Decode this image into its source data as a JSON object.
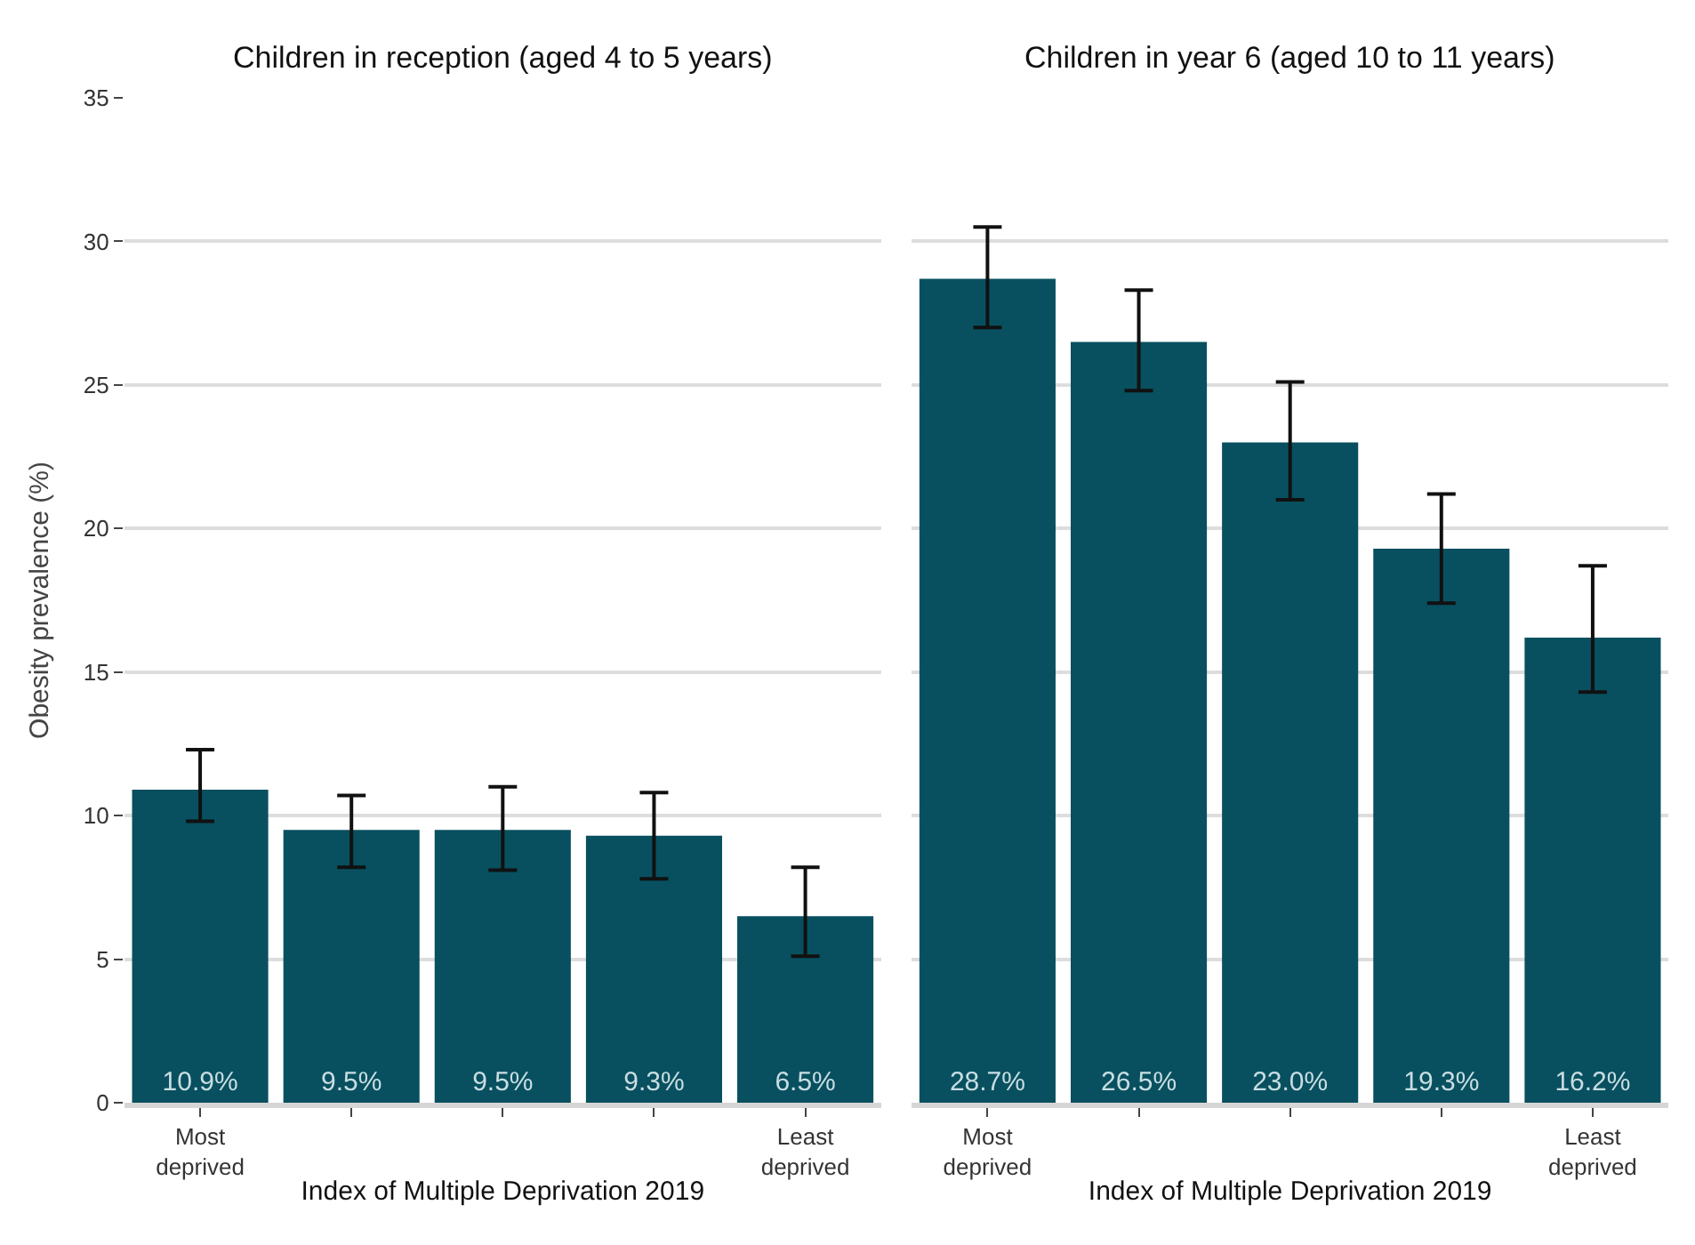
{
  "chart_data": [
    {
      "type": "bar",
      "title": "Children in reception (aged 4 to 5 years)",
      "xlabel": "Index of Multiple Deprivation 2019",
      "ylabel": "Obesity prevalence (%)",
      "categories": [
        "Most\ndeprived",
        null,
        null,
        null,
        "Least\ndeprived"
      ],
      "values": [
        10.9,
        9.5,
        9.5,
        9.3,
        6.5
      ],
      "color": "#08505f",
      "value_labels": [
        "10.9%",
        "9.5%",
        "9.5%",
        "9.3%",
        "6.5%"
      ],
      "errors": [
        [
          9.8,
          12.3
        ],
        [
          8.2,
          10.7
        ],
        [
          8.1,
          11.0
        ],
        [
          7.8,
          10.8
        ],
        [
          5.1,
          8.2
        ]
      ],
      "ylim": [
        0,
        35
      ],
      "yticks": [
        0,
        5,
        10,
        15,
        20,
        25,
        30,
        35
      ],
      "grid": "y"
    },
    {
      "type": "bar",
      "title": "Children in year 6 (aged 10 to 11 years)",
      "xlabel": "Index of Multiple Deprivation 2019",
      "categories": [
        "Most\ndeprived",
        null,
        null,
        null,
        "Least\ndeprived"
      ],
      "values": [
        28.7,
        26.5,
        23.0,
        19.3,
        16.2
      ],
      "color": "#08505f",
      "value_labels": [
        "28.7%",
        "26.5%",
        "23.0%",
        "19.3%",
        "16.2%"
      ],
      "errors": [
        [
          27.0,
          30.5
        ],
        [
          24.8,
          28.3
        ],
        [
          21.0,
          25.1
        ],
        [
          17.4,
          21.2
        ],
        [
          14.3,
          18.7
        ]
      ],
      "ylim": [
        0,
        35
      ],
      "yticks": [
        0,
        5,
        10,
        15,
        20,
        25,
        30,
        35
      ],
      "grid": "y",
      "tick_labels": "x"
    }
  ]
}
